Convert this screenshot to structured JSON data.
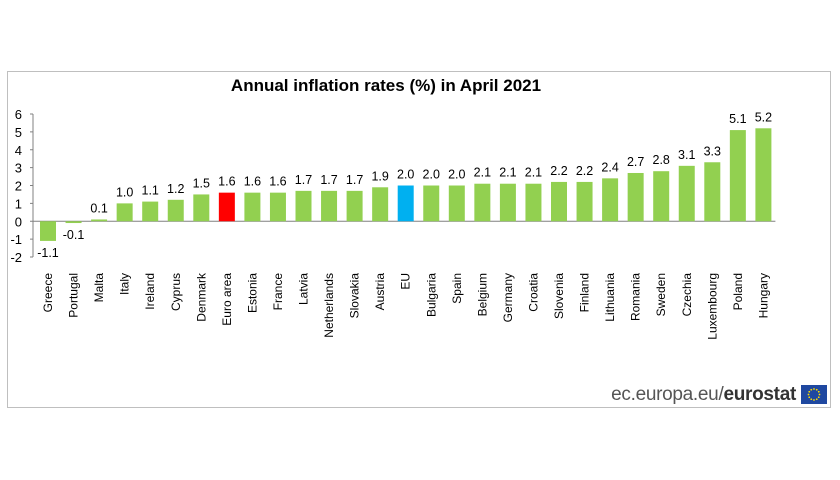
{
  "chart_data": {
    "type": "bar",
    "title": "Annual inflation rates (%) in April 2021",
    "xlabel": "",
    "ylabel": "",
    "ylim": [
      -2,
      6
    ],
    "yticks": [
      -2,
      -1,
      0,
      1,
      2,
      3,
      4,
      5,
      6
    ],
    "categories": [
      "Greece",
      "Portugal",
      "Malta",
      "Italy",
      "Ireland",
      "Cyprus",
      "Denmark",
      "Euro area",
      "Estonia",
      "France",
      "Latvia",
      "Netherlands",
      "Slovakia",
      "Austria",
      "EU",
      "Bulgaria",
      "Spain",
      "Belgium",
      "Germany",
      "Croatia",
      "Slovenia",
      "Finland",
      "Lithuania",
      "Romania",
      "Sweden",
      "Czechia",
      "Luxembourg",
      "Poland",
      "Hungary"
    ],
    "values": [
      -1.1,
      -0.1,
      0.1,
      1.0,
      1.1,
      1.2,
      1.5,
      1.6,
      1.6,
      1.6,
      1.7,
      1.7,
      1.7,
      1.9,
      2.0,
      2.0,
      2.0,
      2.1,
      2.1,
      2.1,
      2.2,
      2.2,
      2.4,
      2.7,
      2.8,
      3.1,
      3.3,
      5.1,
      5.2
    ],
    "labels": [
      "-1.1",
      "-0.1",
      "0.1",
      "1.0",
      "1.1",
      "1.2",
      "1.5",
      "1.6",
      "1.6",
      "1.6",
      "1.7",
      "1.7",
      "1.7",
      "1.9",
      "2.0",
      "2.0",
      "2.0",
      "2.1",
      "2.1",
      "2.1",
      "2.2",
      "2.2",
      "2.4",
      "2.7",
      "2.8",
      "3.1",
      "3.3",
      "5.1",
      "5.2"
    ],
    "colors": {
      "default": "#92d050",
      "Euro area": "#ff0000",
      "EU": "#00b0f0"
    }
  },
  "source": {
    "domain": "ec.europa.eu/",
    "brand": "eurostat"
  }
}
